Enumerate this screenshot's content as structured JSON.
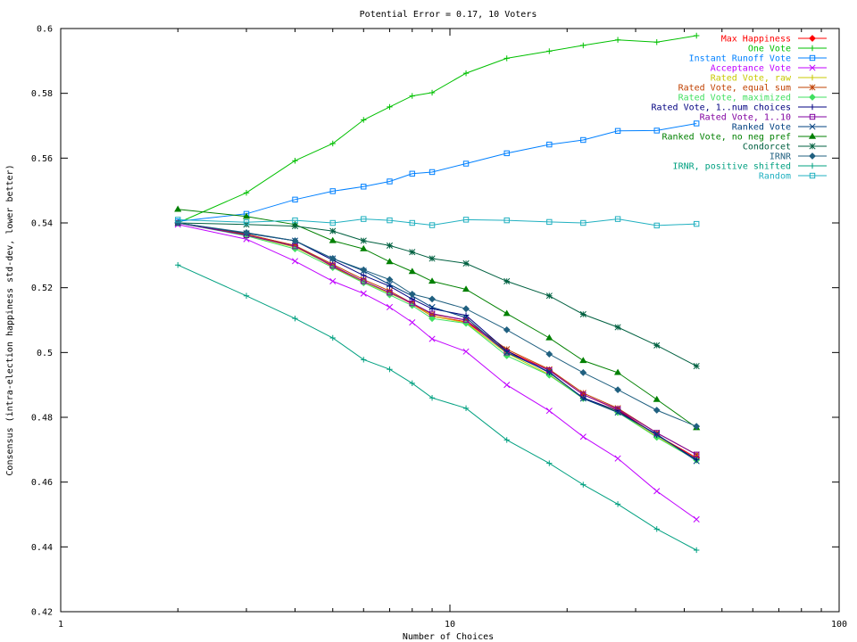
{
  "chart_data": {
    "type": "line",
    "title": "Potential Error = 0.17, 10 Voters",
    "xlabel": "Number of Choices",
    "ylabel": "Consensus (intra-election happiness std-dev, lower better)",
    "xscale": "log",
    "xlim": [
      1,
      100
    ],
    "ylim": [
      0.42,
      0.6
    ],
    "x_ticks": [
      1,
      10,
      100
    ],
    "y_ticks": [
      0.42,
      0.44,
      0.46,
      0.48,
      0.5,
      0.52,
      0.54,
      0.56,
      0.58,
      0.6
    ],
    "y_tick_labels": [
      "0.42",
      "0.44",
      "0.46",
      "0.48",
      "0.5",
      "0.52",
      "0.54",
      "0.56",
      "0.58",
      "0.6"
    ],
    "x_tick_labels": [
      "1",
      "10",
      "100"
    ],
    "legend_position": "top-right",
    "x": [
      2,
      3,
      4,
      5,
      6,
      7,
      8,
      9,
      11,
      14,
      18,
      22,
      27,
      34,
      43
    ],
    "series": [
      {
        "name": "Max Happiness",
        "color": "#ff0000",
        "marker": "diamond",
        "values": [
          0.54,
          0.5365,
          0.533,
          0.5265,
          0.5218,
          0.5185,
          0.515,
          0.5112,
          0.5095,
          0.5005,
          0.4945,
          0.487,
          0.4823,
          0.4745,
          0.4675
        ]
      },
      {
        "name": "One Vote",
        "color": "#00c000",
        "marker": "plus",
        "values": [
          0.54,
          0.5493,
          0.5592,
          0.5645,
          0.5718,
          0.5758,
          0.5792,
          0.5802,
          0.5862,
          0.5908,
          0.593,
          0.5948,
          0.5965,
          0.5958,
          0.5978
        ]
      },
      {
        "name": "Instant Runoff Vote",
        "color": "#0080ff",
        "marker": "square",
        "values": [
          0.5405,
          0.5428,
          0.5472,
          0.5498,
          0.5512,
          0.5528,
          0.5552,
          0.5557,
          0.5583,
          0.5615,
          0.5642,
          0.5656,
          0.5684,
          0.5685,
          0.5707
        ]
      },
      {
        "name": "Acceptance Vote",
        "color": "#c000ff",
        "marker": "x",
        "values": [
          0.5395,
          0.535,
          0.5282,
          0.522,
          0.5182,
          0.514,
          0.5093,
          0.5042,
          0.5003,
          0.49,
          0.482,
          0.474,
          0.4673,
          0.4572,
          0.4485
        ]
      },
      {
        "name": "Rated Vote, raw",
        "color": "#c8c800",
        "marker": "plus",
        "values": [
          0.54,
          0.5362,
          0.5325,
          0.5268,
          0.5218,
          0.5182,
          0.5153,
          0.5112,
          0.5092,
          0.4998,
          0.4932,
          0.4858,
          0.4818,
          0.474,
          0.4672
        ]
      },
      {
        "name": "Rated Vote, equal sum",
        "color": "#c04000",
        "marker": "star",
        "values": [
          0.54,
          0.5365,
          0.533,
          0.5272,
          0.5225,
          0.519,
          0.5152,
          0.5118,
          0.51,
          0.501,
          0.4948,
          0.4875,
          0.4828,
          0.4752,
          0.4685
        ]
      },
      {
        "name": "Rated Vote, maximized",
        "color": "#40e060",
        "marker": "diamond",
        "values": [
          0.54,
          0.536,
          0.532,
          0.5262,
          0.5215,
          0.5178,
          0.5145,
          0.5105,
          0.509,
          0.499,
          0.493,
          0.4858,
          0.4815,
          0.4738,
          0.4668
        ]
      },
      {
        "name": "Rated Vote, 1..num choices",
        "color": "#000080",
        "marker": "plus",
        "values": [
          0.54,
          0.5368,
          0.5345,
          0.5285,
          0.5238,
          0.5205,
          0.5165,
          0.5135,
          0.5115,
          0.5005,
          0.4938,
          0.486,
          0.482,
          0.4745,
          0.467
        ]
      },
      {
        "name": "Rated Vote, 1..10",
        "color": "#8000a0",
        "marker": "square",
        "values": [
          0.54,
          0.5362,
          0.5328,
          0.5268,
          0.522,
          0.5185,
          0.5152,
          0.512,
          0.51,
          0.5,
          0.4945,
          0.487,
          0.4825,
          0.4752,
          0.4685
        ]
      },
      {
        "name": "Ranked Vote",
        "color": "#004080",
        "marker": "x",
        "values": [
          0.54,
          0.5368,
          0.5345,
          0.529,
          0.5252,
          0.521,
          0.5175,
          0.514,
          0.5108,
          0.5,
          0.494,
          0.4858,
          0.4815,
          0.4748,
          0.4665
        ]
      },
      {
        "name": "Ranked Vote, no neg pref",
        "color": "#008000",
        "marker": "triangle",
        "values": [
          0.5442,
          0.542,
          0.5395,
          0.5345,
          0.532,
          0.528,
          0.525,
          0.522,
          0.5195,
          0.512,
          0.5045,
          0.4975,
          0.4938,
          0.4855,
          0.4768
        ]
      },
      {
        "name": "Condorcet",
        "color": "#006040",
        "marker": "star",
        "values": [
          0.54,
          0.5395,
          0.539,
          0.5375,
          0.5345,
          0.533,
          0.531,
          0.529,
          0.5275,
          0.522,
          0.5175,
          0.5118,
          0.5078,
          0.5022,
          0.4958
        ]
      },
      {
        "name": "IRNR",
        "color": "#206080",
        "marker": "diamond",
        "values": [
          0.54,
          0.537,
          0.5345,
          0.529,
          0.5255,
          0.5225,
          0.518,
          0.5165,
          0.5135,
          0.507,
          0.4995,
          0.4938,
          0.4885,
          0.4822,
          0.4772
        ]
      },
      {
        "name": "IRNR, positive shifted",
        "color": "#00a080",
        "marker": "plus",
        "values": [
          0.527,
          0.5175,
          0.5105,
          0.5045,
          0.4978,
          0.4948,
          0.4905,
          0.486,
          0.4828,
          0.473,
          0.4658,
          0.4592,
          0.4532,
          0.4455,
          0.439
        ]
      },
      {
        "name": "Random",
        "color": "#20b0c0",
        "marker": "square",
        "values": [
          0.541,
          0.5402,
          0.5408,
          0.54,
          0.5412,
          0.5408,
          0.54,
          0.5393,
          0.541,
          0.5408,
          0.5403,
          0.54,
          0.5412,
          0.5392,
          0.5397
        ]
      }
    ]
  }
}
